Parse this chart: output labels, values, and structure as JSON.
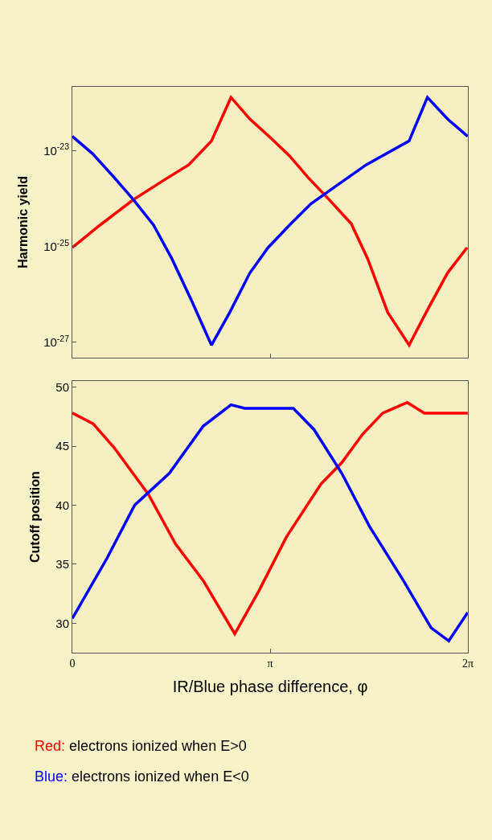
{
  "chart_data": [
    {
      "type": "line",
      "ylabel": "Harmonic yield",
      "log": "y",
      "xlim": [
        0,
        6.2832
      ],
      "ylim": [
        4.7e-28,
        2.2e-22
      ],
      "yticks": [
        {
          "value": 1e-23,
          "label": "10$^{-23}$"
        },
        {
          "value": 1e-25,
          "label": "10$^{-25}$"
        },
        {
          "value": 1e-27,
          "label": "10$^{-27}$"
        }
      ],
      "tick_labels": "y",
      "series": [
        {
          "color": "#ff0000",
          "x": [
            0,
            0.44,
            0.97,
            1.46,
            1.85,
            2.21,
            2.52,
            2.82,
            3.16,
            3.45,
            3.74,
            4.08,
            4.43,
            4.69,
            5.01,
            5.35,
            5.62,
            5.96,
            6.27
          ],
          "values": [
            9.5e-26,
            2.8e-25,
            9.5e-25,
            2.45e-24,
            5.1e-24,
            1.6e-23,
            1.3e-22,
            4.6e-23,
            1.8e-23,
            7.8e-24,
            2.8e-24,
            9.5e-25,
            3e-25,
            5.6e-26,
            4.2e-27,
            8.7e-28,
            4.2e-27,
            2.8e-26,
            9.5e-26
          ]
        },
        {
          "color": "#0000ff",
          "x": [
            0,
            0.32,
            0.66,
            0.97,
            1.29,
            1.58,
            1.9,
            2.21,
            2.5,
            2.82,
            3.11,
            3.45,
            3.79,
            4.18,
            4.67,
            5.35,
            5.64,
            5.96,
            6.28
          ],
          "values": [
            2e-23,
            8.7e-24,
            2.8e-24,
            9.5e-25,
            2.8e-25,
            5.6e-26,
            7.1e-27,
            8.7e-28,
            4.2e-27,
            2.8e-26,
            9.5e-26,
            2.8e-25,
            7.8e-25,
            1.8e-24,
            5.1e-24,
            1.6e-23,
            1.3e-22,
            4.6e-23,
            2e-23
          ]
        }
      ]
    },
    {
      "type": "line",
      "ylabel": "Cutoff position",
      "xlabel": "IR/Blue phase difference, φ",
      "xlim": [
        0,
        6.2832
      ],
      "xticks": [
        0,
        {
          "value": 3.1416,
          "label": "π"
        },
        {
          "value": 6.2832,
          "label": "2π"
        }
      ],
      "ylim": [
        27.5,
        50.5
      ],
      "yticks": [
        30,
        35,
        40,
        45,
        50
      ],
      "annotations": [
        "Red: electrons ionized when E>0",
        "Blue: electrons ionized when E<0"
      ],
      "series": [
        {
          "color": "#ff0000",
          "x": [
            0,
            0.33,
            0.66,
            1.21,
            1.64,
            2.08,
            2.58,
            2.96,
            3.4,
            3.95,
            4.28,
            4.61,
            4.93,
            5.32,
            5.59,
            6.28
          ],
          "values": [
            47.8,
            46.9,
            44.9,
            40.9,
            36.7,
            33.6,
            29.1,
            32.7,
            37.3,
            41.8,
            43.6,
            46.0,
            47.8,
            48.7,
            47.8,
            47.8
          ]
        },
        {
          "color": "#0000ff",
          "x": [
            0,
            0.55,
            0.99,
            1.54,
            2.08,
            2.52,
            2.74,
            3.51,
            3.84,
            4.28,
            4.72,
            5.26,
            5.7,
            5.98,
            6.28
          ],
          "values": [
            30.4,
            35.5,
            40.0,
            42.7,
            46.7,
            48.5,
            48.2,
            48.2,
            46.4,
            42.7,
            38.2,
            33.6,
            29.6,
            28.5,
            30.9
          ]
        }
      ]
    }
  ]
}
